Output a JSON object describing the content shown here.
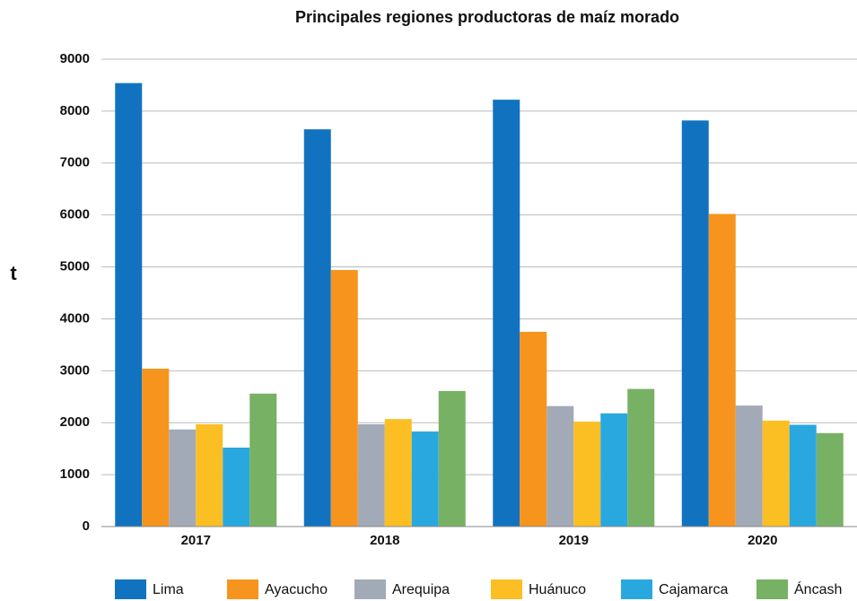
{
  "chart_data": {
    "type": "bar",
    "title": "Principales regiones productoras de maíz morado",
    "y_label": "t",
    "categories": [
      "2017",
      "2018",
      "2019",
      "2020"
    ],
    "series": [
      {
        "name": "Lima",
        "color": "#1173bf",
        "values": [
          8540,
          7650,
          8220,
          7820
        ]
      },
      {
        "name": "Ayacucho",
        "color": "#f7941d",
        "values": [
          3040,
          4940,
          3750,
          6020
        ]
      },
      {
        "name": "Arequipa",
        "color": "#a2aab8",
        "values": [
          1870,
          1970,
          2320,
          2330
        ]
      },
      {
        "name": "Huánuco",
        "color": "#fbbf24",
        "values": [
          1970,
          2070,
          2020,
          2040
        ]
      },
      {
        "name": "Cajamarca",
        "color": "#29a8e0",
        "values": [
          1520,
          1830,
          2180,
          1960
        ]
      },
      {
        "name": "Áncash",
        "color": "#77b163",
        "values": [
          2560,
          2610,
          2650,
          1800
        ]
      }
    ],
    "ylim": [
      0,
      9000
    ],
    "yticks": [
      0,
      1000,
      2000,
      3000,
      4000,
      5000,
      6000,
      7000,
      8000,
      9000
    ],
    "grid": true,
    "legend": "bottom"
  }
}
